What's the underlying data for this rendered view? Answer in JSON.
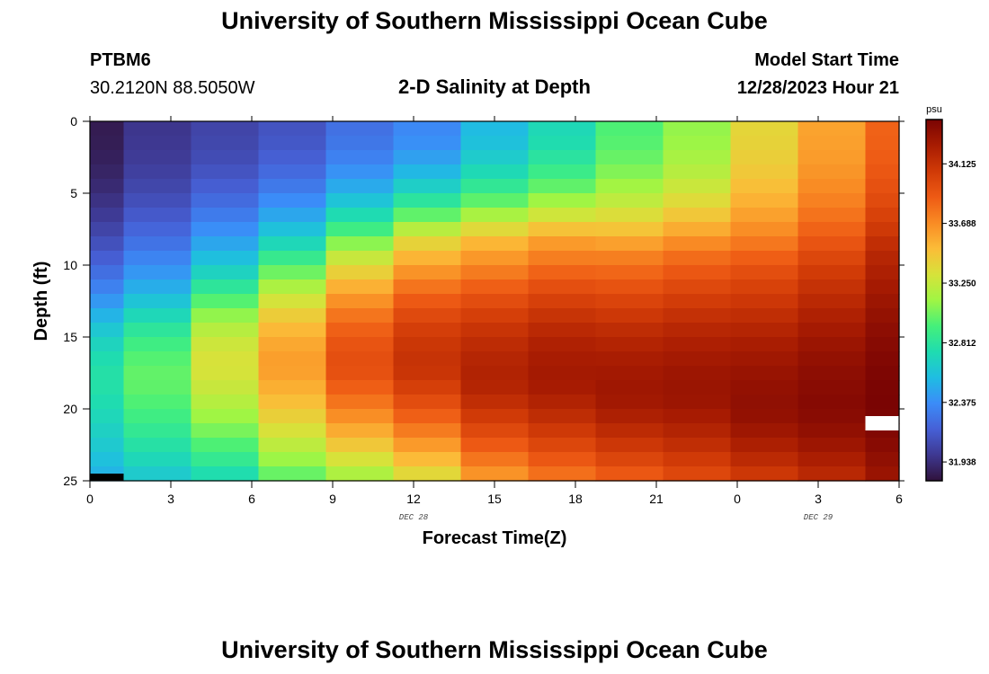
{
  "header": {
    "title": "University of Southern Mississippi Ocean Cube",
    "station": "PTBM6",
    "coords": "30.2120N  88.5050W",
    "subtitle": "2-D Salinity at Depth",
    "model_label": "Model Start Time",
    "model_time": "12/28/2023 Hour 21"
  },
  "footer": {
    "title": "University of Southern Mississippi Ocean Cube"
  },
  "chart_data": {
    "type": "heatmap",
    "title": "2-D Salinity at Depth",
    "xlabel": "Forecast Time(Z)",
    "ylabel": "Depth (ft)",
    "units": "psu",
    "x_ticks": [
      "0",
      "3",
      "6",
      "9",
      "12",
      "15",
      "18",
      "21",
      "0",
      "3",
      "6"
    ],
    "x_tick_hours": [
      0,
      3,
      6,
      9,
      12,
      15,
      18,
      21,
      24,
      27,
      30
    ],
    "y_ticks": [
      "0",
      "5",
      "10",
      "15",
      "20",
      "25"
    ],
    "y_tick_values": [
      0,
      5,
      10,
      15,
      20,
      25
    ],
    "xlim_hours": [
      0,
      30
    ],
    "ylim_ft": [
      0,
      25
    ],
    "date_labels": [
      {
        "text": "DEC 28",
        "hour": 12
      },
      {
        "text": "DEC 29",
        "hour": 27
      }
    ],
    "colorbar": {
      "ticks": [
        "34.125",
        "33.688",
        "33.250",
        "32.812",
        "32.375",
        "31.938"
      ],
      "tick_values": [
        34.125,
        33.688,
        33.25,
        32.812,
        32.375,
        31.938
      ],
      "min": 31.8,
      "max": 34.45,
      "colors": [
        "#30123b",
        "#3e3891",
        "#4660d6",
        "#3b8cf8",
        "#1fbde2",
        "#1fdcb0",
        "#45f07a",
        "#a0f544",
        "#d7e23a",
        "#fbbc38",
        "#f98b24",
        "#ee5a14",
        "#d03a07",
        "#a81c02",
        "#7a0403"
      ]
    },
    "column_hours": [
      0,
      1.25,
      3.75,
      6.25,
      8.75,
      11.25,
      13.75,
      16.25,
      18.75,
      21.25,
      23.75,
      26.25,
      28.75,
      30
    ],
    "row_depth_step_ft": 1,
    "columns": [
      {
        "top": 31.85,
        "bottom": 32.5,
        "peak": 32.78,
        "peak_depth": 18,
        "knee": 12
      },
      {
        "top": 31.98,
        "bottom": 32.6,
        "peak": 33.0,
        "peak_depth": 18,
        "knee": 12
      },
      {
        "top": 32.05,
        "bottom": 32.7,
        "peak": 33.32,
        "peak_depth": 17,
        "knee": 11
      },
      {
        "top": 32.12,
        "bottom": 32.95,
        "peak": 33.62,
        "peak_depth": 17,
        "knee": 10
      },
      {
        "top": 32.25,
        "bottom": 33.1,
        "peak": 33.95,
        "peak_depth": 17,
        "knee": 9
      },
      {
        "top": 32.35,
        "bottom": 33.3,
        "peak": 34.12,
        "peak_depth": 17,
        "knee": 8
      },
      {
        "top": 32.55,
        "bottom": 33.6,
        "peak": 34.22,
        "peak_depth": 18,
        "knee": 8
      },
      {
        "top": 32.72,
        "bottom": 33.75,
        "peak": 34.28,
        "peak_depth": 18,
        "knee": 8
      },
      {
        "top": 32.95,
        "bottom": 33.85,
        "peak": 34.3,
        "peak_depth": 19,
        "knee": 9
      },
      {
        "top": 33.1,
        "bottom": 33.95,
        "peak": 34.32,
        "peak_depth": 19,
        "knee": 9
      },
      {
        "top": 33.38,
        "bottom": 34.05,
        "peak": 34.36,
        "peak_depth": 20,
        "knee": 10
      },
      {
        "top": 33.6,
        "bottom": 34.15,
        "peak": 34.4,
        "peak_depth": 20,
        "knee": 10
      },
      {
        "top": 33.85,
        "bottom": 34.3,
        "peak": 34.45,
        "peak_depth": 20,
        "knee": 9
      }
    ],
    "missing_cells": [
      {
        "column": 0,
        "depth_from": 24.5,
        "depth_to": 25
      },
      {
        "column": 12,
        "depth_from": 20.5,
        "depth_to": 21.5
      }
    ]
  }
}
